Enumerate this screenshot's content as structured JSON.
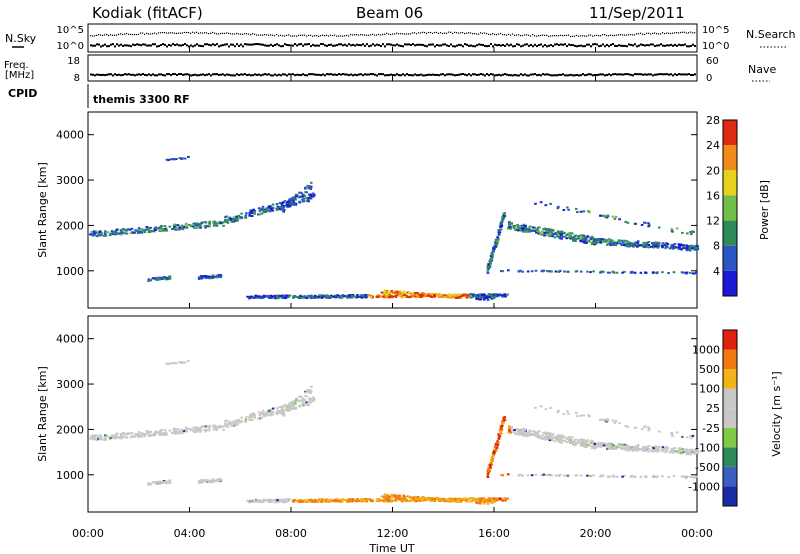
{
  "header": {
    "station": "Kodiak (fitACF)",
    "beam": "Beam 06",
    "date": "11/Sep/2011"
  },
  "noise_panel": {
    "left_label": "N.Sky",
    "left_ticks": [
      "10^5",
      "10^0"
    ],
    "right_ticks": [
      "10^5",
      "10^0"
    ],
    "right_label": "N.Search"
  },
  "freq_panel": {
    "left_label_1": "Freq.",
    "left_label_2": "[MHz]",
    "left_ticks": [
      "18",
      "8"
    ],
    "right_ticks": [
      "60",
      "0"
    ],
    "right_label": "Nave"
  },
  "cpid": {
    "label": "CPID",
    "value": "themis 3300 RF"
  },
  "chart_data": [
    {
      "type": "heatmap",
      "title": "",
      "ylabel": "Slant Range [km]",
      "ylim": [
        180,
        4500
      ],
      "yticks": [
        "1000",
        "2000",
        "3000",
        "4000"
      ],
      "xlim": [
        "00:00",
        "24:00"
      ],
      "colorbar": {
        "label": "Power [dB]",
        "ticks": [
          "4",
          "8",
          "12",
          "16",
          "20",
          "24",
          "28"
        ],
        "colors": [
          "#1a1ad6",
          "#2a56c6",
          "#2e8b57",
          "#6fbf4a",
          "#e6d21c",
          "#f08a1a",
          "#e02a10"
        ]
      }
    },
    {
      "type": "heatmap",
      "title": "",
      "ylabel": "Slant Range [km]",
      "ylim": [
        180,
        4500
      ],
      "yticks": [
        "1000",
        "2000",
        "3000",
        "4000"
      ],
      "xlabel": "Time UT",
      "xticks": [
        "00:00",
        "04:00",
        "08:00",
        "12:00",
        "16:00",
        "20:00",
        "00:00"
      ],
      "colorbar": {
        "label": "Velocity [m s⁻¹]",
        "ticks": [
          "1000",
          "500",
          "100",
          "25",
          "-25",
          "-100",
          "-500",
          "-1000"
        ],
        "colors": [
          "#1a2aa6",
          "#3a5fc0",
          "#2e8b57",
          "#7fcc44",
          "#c8c8c8",
          "#c8c8c8",
          "#f2b21a",
          "#f07a10",
          "#e02010"
        ]
      }
    }
  ]
}
